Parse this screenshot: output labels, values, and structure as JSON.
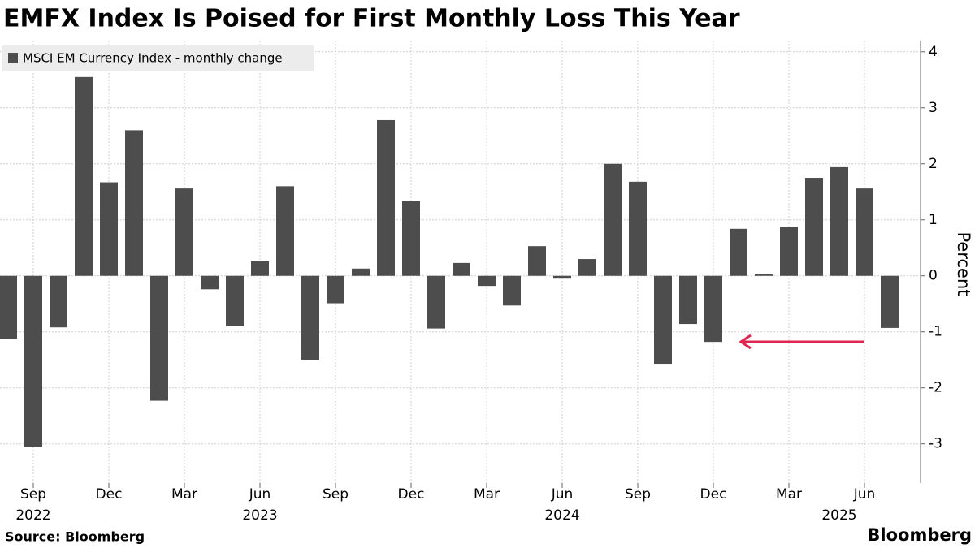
{
  "chart_data": {
    "type": "bar",
    "title": "EMFX Index Is Poised for First Monthly Loss This Year",
    "legend": "MSCI EM Currency Index - monthly change",
    "y_label": "Percent",
    "source": "Source: Bloomberg",
    "brand": "Bloomberg",
    "categories": [
      null,
      "Sep",
      null,
      null,
      "Dec",
      null,
      null,
      "Mar",
      null,
      null,
      "Jun",
      null,
      null,
      "Sep",
      null,
      null,
      "Dec",
      null,
      null,
      "Mar",
      null,
      null,
      "Jun",
      null,
      null,
      "Sep",
      null,
      null,
      "Dec",
      null,
      null,
      "Mar",
      null,
      null,
      "Jun",
      null
    ],
    "years": [
      null,
      "2022",
      null,
      null,
      null,
      null,
      null,
      null,
      null,
      null,
      "2023",
      null,
      null,
      null,
      null,
      null,
      null,
      null,
      null,
      null,
      null,
      null,
      "2024",
      null,
      null,
      null,
      null,
      null,
      null,
      null,
      null,
      null,
      null,
      "2025",
      null,
      null
    ],
    "values": [
      -1.12,
      -3.05,
      -0.92,
      3.55,
      1.67,
      2.6,
      -2.23,
      1.56,
      -0.24,
      -0.9,
      0.26,
      1.6,
      -1.5,
      -0.49,
      0.13,
      2.78,
      1.33,
      -0.94,
      0.23,
      -0.18,
      -0.53,
      0.53,
      -0.05,
      0.3,
      2.0,
      1.68,
      -1.57,
      -0.86,
      -1.18,
      0.84,
      0.03,
      0.87,
      1.75,
      1.94,
      1.56,
      -0.93
    ],
    "color": "#4d4d4d",
    "ylim": [
      -3.7,
      4.2
    ],
    "yticks": [
      -3,
      -2,
      -1,
      0,
      1,
      2,
      3,
      4
    ],
    "grid": true
  }
}
